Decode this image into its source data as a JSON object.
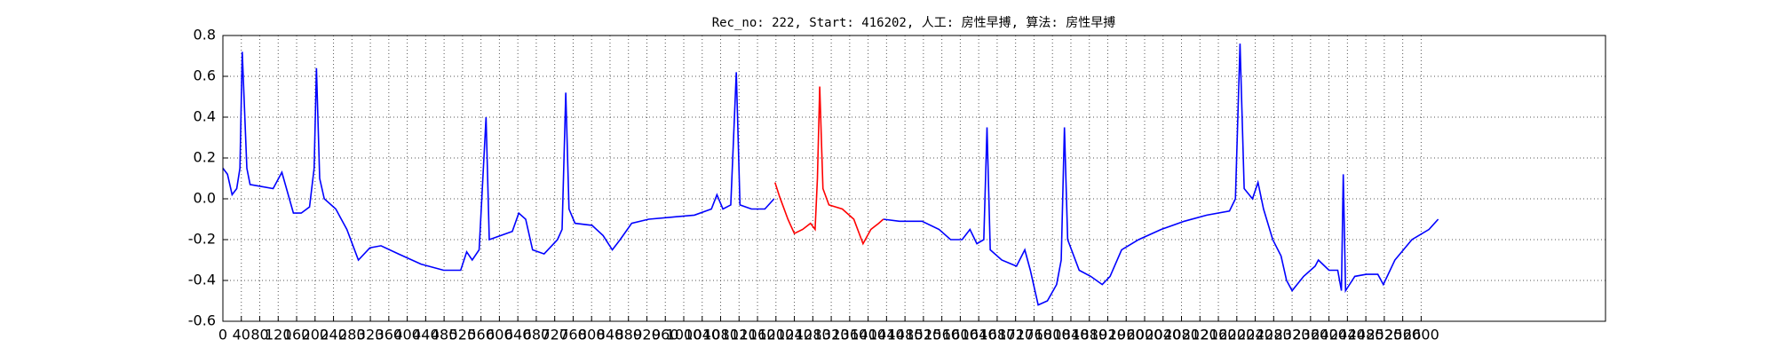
{
  "chart_data": {
    "type": "line",
    "title": "Rec_no: 222, Start: 416202, 人工: 房性早搏, 算法: 房性早搏",
    "x": [
      0,
      10,
      20,
      30,
      37,
      42,
      52,
      59,
      84,
      109,
      128,
      138,
      153,
      170,
      188,
      198,
      203,
      210,
      220,
      245,
      269,
      294,
      319,
      343,
      381,
      430,
      479,
      516,
      529,
      541,
      556,
      571,
      578,
      603,
      628,
      642,
      657,
      672,
      697,
      726,
      736,
      744,
      751,
      764,
      801,
      825,
      845,
      862,
      887,
      924,
      974,
      1023,
      1060,
      1072,
      1085,
      1102,
      1114,
      1122,
      1147,
      1176,
      1196,
      1198,
      1208,
      1226,
      1240,
      1258,
      1275,
      1285,
      1290,
      1295,
      1302,
      1315,
      1344,
      1369,
      1389,
      1406,
      1423,
      1433,
      1468,
      1517,
      1554,
      1579,
      1604,
      1621,
      1636,
      1651,
      1658,
      1665,
      1690,
      1722,
      1740,
      1752,
      1769,
      1789,
      1809,
      1819,
      1826,
      1833,
      1858,
      1883,
      1908,
      1925,
      1950,
      1987,
      2036,
      2086,
      2135,
      2184,
      2197,
      2207,
      2216,
      2234,
      2246,
      2258,
      2278,
      2296,
      2308,
      2320,
      2345,
      2370,
      2377,
      2400,
      2419,
      2427,
      2431,
      2436,
      2456,
      2481,
      2506,
      2518,
      2543,
      2580,
      2617,
      2637
    ],
    "series": [
      {
        "color": "#0000ff",
        "values": [
          0.15,
          0.12,
          0.02,
          0.05,
          0.15,
          0.72,
          0.15,
          0.07,
          0.06,
          0.05,
          0.13,
          0.05,
          -0.07,
          -0.07,
          -0.04,
          0.15,
          0.64,
          0.1,
          0.0,
          -0.05,
          -0.15,
          -0.3,
          -0.24,
          -0.23,
          -0.27,
          -0.32,
          -0.35,
          -0.35,
          -0.26,
          -0.3,
          -0.25,
          0.4,
          -0.2,
          -0.18,
          -0.16,
          -0.07,
          -0.1,
          -0.25,
          -0.27,
          -0.2,
          -0.15,
          0.52,
          -0.05,
          -0.12,
          -0.13,
          -0.18,
          -0.25,
          -0.2,
          -0.12,
          -0.1,
          -0.09,
          -0.08,
          -0.05,
          0.02,
          -0.05,
          -0.03,
          0.62,
          -0.03,
          -0.05,
          -0.05,
          0.0,
          null,
          null,
          null,
          null,
          null,
          null,
          null,
          null,
          null,
          null,
          null,
          null,
          null,
          null,
          null,
          null,
          -0.1,
          -0.11,
          -0.11,
          -0.15,
          -0.2,
          -0.2,
          -0.15,
          -0.22,
          -0.2,
          0.35,
          -0.25,
          -0.3,
          -0.33,
          -0.25,
          -0.35,
          -0.52,
          -0.5,
          -0.42,
          -0.3,
          0.35,
          -0.2,
          -0.35,
          -0.38,
          -0.42,
          -0.38,
          -0.25,
          -0.2,
          -0.15,
          -0.11,
          -0.08,
          -0.06,
          0.0,
          0.76,
          0.05,
          0.0,
          0.08,
          -0.05,
          -0.2,
          -0.28,
          -0.4,
          -0.45,
          -0.38,
          -0.33,
          -0.3,
          -0.35,
          -0.35,
          -0.45,
          0.12,
          -0.45,
          -0.38,
          -0.37,
          -0.37,
          -0.42,
          -0.3,
          -0.2,
          -0.15,
          -0.1
        ]
      },
      {
        "color": "#ff0000",
        "values": [
          null,
          null,
          null,
          null,
          null,
          null,
          null,
          null,
          null,
          null,
          null,
          null,
          null,
          null,
          null,
          null,
          null,
          null,
          null,
          null,
          null,
          null,
          null,
          null,
          null,
          null,
          null,
          null,
          null,
          null,
          null,
          null,
          null,
          null,
          null,
          null,
          null,
          null,
          null,
          null,
          null,
          null,
          null,
          null,
          null,
          null,
          null,
          null,
          null,
          null,
          null,
          null,
          null,
          null,
          null,
          null,
          null,
          null,
          null,
          null,
          null,
          0.08,
          0.01,
          -0.1,
          -0.17,
          -0.15,
          -0.12,
          -0.15,
          0.1,
          0.55,
          0.05,
          -0.03,
          -0.05,
          -0.1,
          -0.22,
          -0.15,
          -0.12,
          -0.1,
          null,
          null,
          null,
          null,
          null,
          null,
          null,
          null,
          null,
          null,
          null,
          null,
          null,
          null,
          null,
          null,
          null,
          null,
          null,
          null,
          null,
          null,
          null,
          null,
          null,
          null,
          null,
          null,
          null,
          null,
          null,
          null,
          null,
          null,
          null,
          null,
          null,
          null,
          null,
          null,
          null,
          null,
          null,
          null,
          null,
          null,
          null,
          null,
          null,
          null,
          null,
          null,
          null,
          null,
          null,
          null
        ]
      }
    ],
    "xlim": [
      0,
      3000
    ],
    "xticks": [
      0,
      40,
      80,
      120,
      160,
      200,
      240,
      280,
      320,
      360,
      400,
      440,
      480,
      520,
      560,
      600,
      640,
      680,
      720,
      760,
      800,
      840,
      880,
      920,
      960,
      1000,
      1040,
      1080,
      1120,
      1160,
      1200,
      1240,
      1280,
      1320,
      1360,
      1400,
      1440,
      1480,
      1520,
      1560,
      1600,
      1640,
      1680,
      1720,
      1760,
      1800,
      1840,
      1880,
      1920,
      1960,
      2000,
      2040,
      2080,
      2120,
      2160,
      2200,
      2240,
      2280,
      2320,
      2360,
      2400,
      2440,
      2480,
      2520,
      2560,
      2600
    ],
    "ylim": [
      -0.6,
      0.8
    ],
    "yticks": [
      -0.6,
      -0.4,
      -0.2,
      {
        "value": 0,
        "label": "0.0"
      },
      0.2,
      0.4,
      0.6,
      0.8
    ],
    "grid": true
  }
}
